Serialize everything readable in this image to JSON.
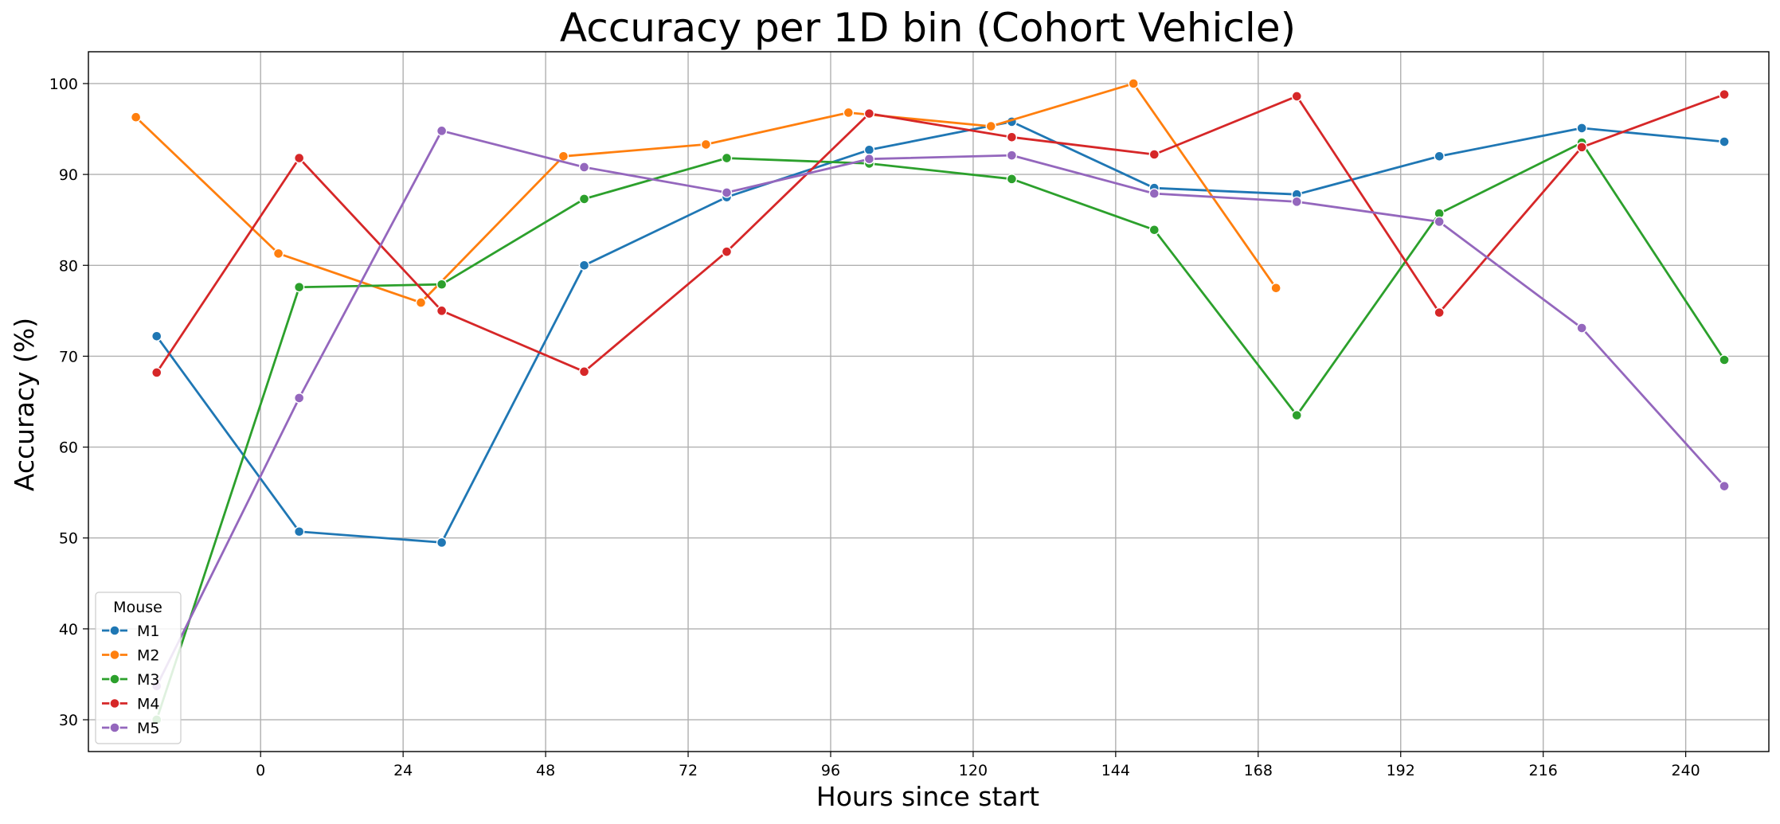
{
  "chart_data": {
    "type": "line",
    "title": "Accuracy per 1D bin (Cohort Vehicle)",
    "xlabel": "Hours since start",
    "ylabel": "Accuracy (%)",
    "xlim": [
      -29,
      254
    ],
    "ylim": [
      26.5,
      103.5
    ],
    "xticks": [
      0,
      24,
      48,
      72,
      96,
      120,
      144,
      168,
      192,
      216,
      240
    ],
    "yticks": [
      30,
      40,
      50,
      60,
      70,
      80,
      90,
      100
    ],
    "grid": true,
    "legend": {
      "title": "Mouse",
      "placement": "lower-left"
    },
    "series": [
      {
        "name": "M1",
        "color": "#1f77b4",
        "x": [
          -17.5,
          6.5,
          30.5,
          54.5,
          78.5,
          102.5,
          126.5,
          150.5,
          174.5,
          198.5,
          222.5,
          246.5
        ],
        "y": [
          72.2,
          50.7,
          49.5,
          80.0,
          87.5,
          92.7,
          95.8,
          88.5,
          87.8,
          92.0,
          95.1,
          93.6
        ]
      },
      {
        "name": "M2",
        "color": "#ff7f0e",
        "x": [
          -21,
          3,
          27,
          51,
          75,
          99,
          123,
          147,
          171
        ],
        "y": [
          96.3,
          81.3,
          75.9,
          92.0,
          93.3,
          96.8,
          95.3,
          100.0,
          77.5
        ]
      },
      {
        "name": "M3",
        "color": "#2ca02c",
        "x": [
          -17.5,
          6.5,
          30.5,
          54.5,
          78.5,
          102.5,
          126.5,
          150.5,
          174.5,
          198.5,
          222.5,
          246.5
        ],
        "y": [
          30.0,
          77.6,
          77.9,
          87.3,
          91.8,
          91.2,
          89.5,
          83.9,
          63.5,
          85.7,
          93.5,
          69.6
        ]
      },
      {
        "name": "M4",
        "color": "#d62728",
        "x": [
          -17.5,
          6.5,
          30.5,
          54.5,
          78.5,
          102.5,
          126.5,
          150.5,
          174.5,
          198.5,
          222.5,
          246.5
        ],
        "y": [
          68.2,
          91.8,
          75.0,
          68.3,
          81.5,
          96.7,
          94.1,
          92.2,
          98.6,
          74.8,
          93.0,
          98.8
        ]
      },
      {
        "name": "M5",
        "color": "#9467bd",
        "x": [
          -17.5,
          6.5,
          30.5,
          54.5,
          78.5,
          102.5,
          126.5,
          150.5,
          174.5,
          198.5,
          222.5,
          246.5
        ],
        "y": [
          33.7,
          65.4,
          94.8,
          90.8,
          88.0,
          91.7,
          92.1,
          87.9,
          87.0,
          84.8,
          73.1,
          55.7
        ]
      }
    ]
  }
}
